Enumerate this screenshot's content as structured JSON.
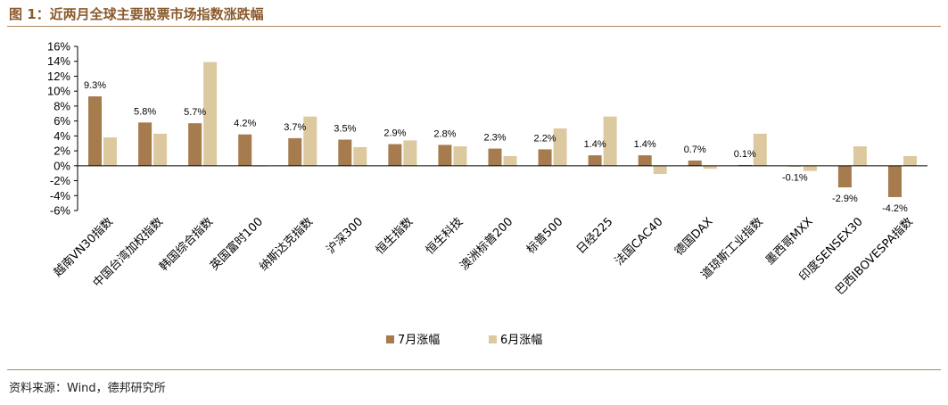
{
  "figure": {
    "title": "图 1：近两月全球主要股票市场指数涨跌幅",
    "source": "资料来源：Wind，德邦研究所"
  },
  "colors": {
    "series1": "#A67B4E",
    "series2": "#DCC9A0",
    "title": "#8B5A2B",
    "rule": "#B08860"
  },
  "chart_data": {
    "type": "bar",
    "categories": [
      "越南VN30指数",
      "中国台湾加权指数",
      "韩国综合指数",
      "英国富时100",
      "纳斯达克指数",
      "沪深300",
      "恒生指数",
      "恒生科技",
      "澳洲标普200",
      "标普500",
      "日经225",
      "法国CAC40",
      "德国DAX",
      "道琼斯工业指数",
      "墨西哥MXX",
      "印度SENSEX30",
      "巴西IBOVESPA指数"
    ],
    "series": [
      {
        "name": "7月涨幅",
        "values": [
          9.3,
          5.8,
          5.7,
          4.2,
          3.7,
          3.5,
          2.9,
          2.8,
          2.3,
          2.2,
          1.4,
          1.4,
          0.7,
          0.1,
          -0.1,
          -2.9,
          -4.2
        ],
        "data_labels": [
          "9.3%",
          "5.8%",
          "5.7%",
          "4.2%",
          "3.7%",
          "3.5%",
          "2.9%",
          "2.8%",
          "2.3%",
          "2.2%",
          "1.4%",
          "1.4%",
          "0.7%",
          "0.1%",
          "-0.1%",
          "-2.9%",
          "-4.2%"
        ]
      },
      {
        "name": "6月涨幅",
        "values": [
          3.8,
          4.3,
          13.9,
          -0.1,
          6.6,
          2.5,
          3.4,
          2.6,
          1.3,
          5.0,
          6.6,
          -1.1,
          -0.4,
          4.3,
          -0.7,
          2.6,
          1.3
        ]
      }
    ],
    "ylim": [
      -6,
      16
    ],
    "yticks": [
      -6,
      -4,
      -2,
      0,
      2,
      4,
      6,
      8,
      10,
      12,
      14,
      16
    ],
    "ytick_labels": [
      "-6%",
      "-4%",
      "-2%",
      "0%",
      "2%",
      "4%",
      "6%",
      "8%",
      "10%",
      "12%",
      "14%",
      "16%"
    ],
    "legend": "bottom-center",
    "grid": false
  }
}
